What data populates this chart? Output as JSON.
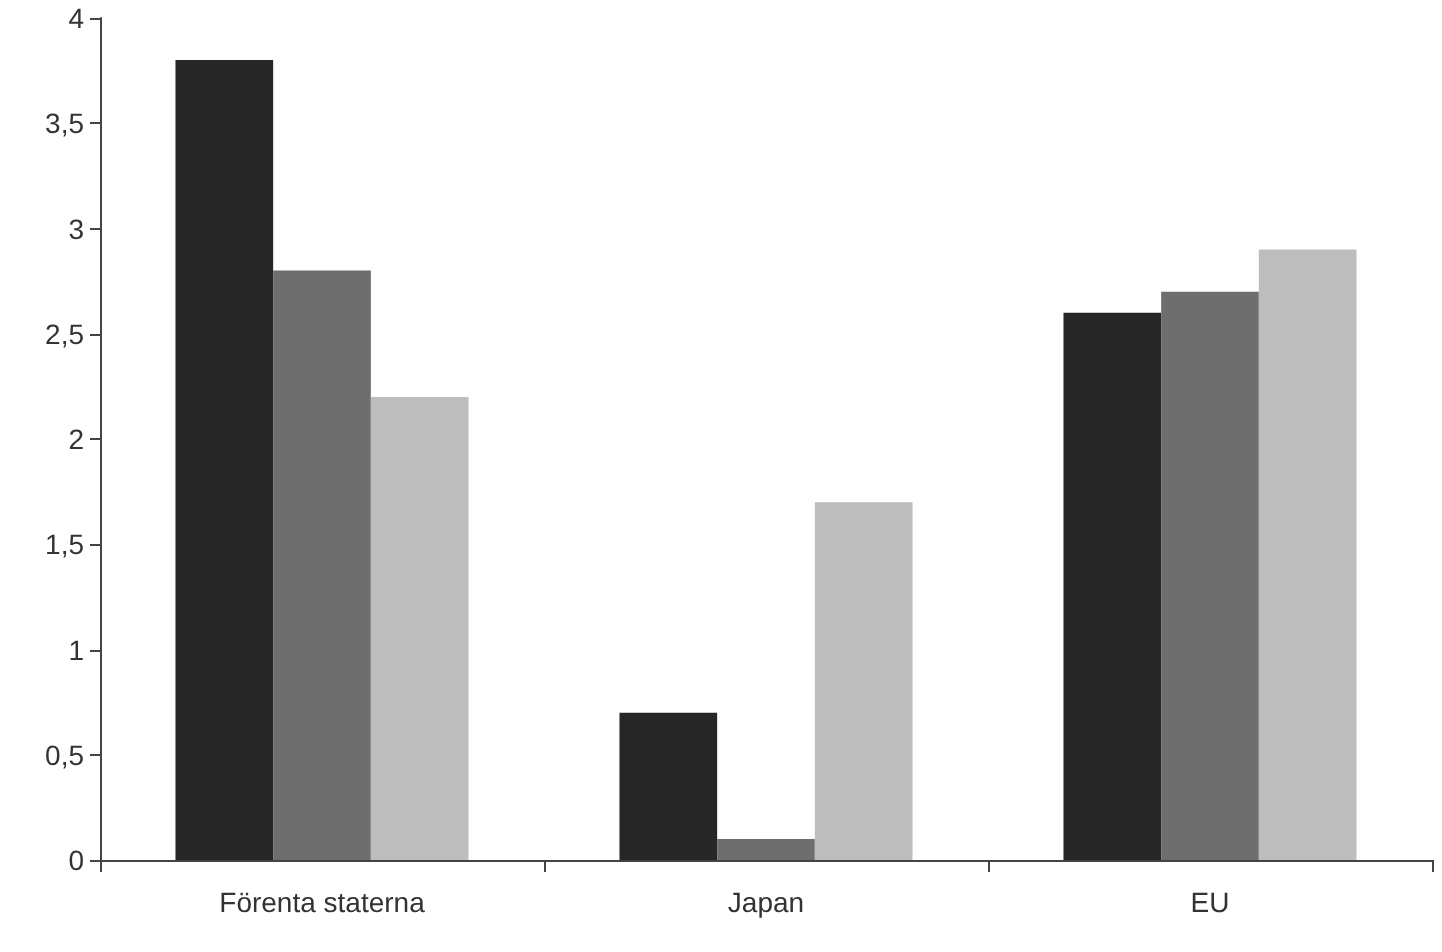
{
  "chart_data": {
    "type": "bar",
    "categories": [
      "Förenta staterna",
      "Japan",
      "EU"
    ],
    "series": [
      {
        "color": "#262626",
        "values": [
          3.8,
          0.7,
          2.6
        ]
      },
      {
        "color": "#6e6e6e",
        "values": [
          2.8,
          0.1,
          2.7
        ]
      },
      {
        "color": "#bdbdbd",
        "values": [
          2.2,
          1.7,
          2.9
        ]
      }
    ],
    "ylim": [
      0,
      4
    ],
    "yticks": [
      0,
      {
        "value": 0.5,
        "label": "0,5"
      },
      1,
      {
        "value": 1.5,
        "label": "1,5"
      },
      2,
      {
        "value": 2.5,
        "label": "2,5"
      },
      3,
      {
        "value": 3.5,
        "label": "3,5"
      },
      4
    ]
  }
}
